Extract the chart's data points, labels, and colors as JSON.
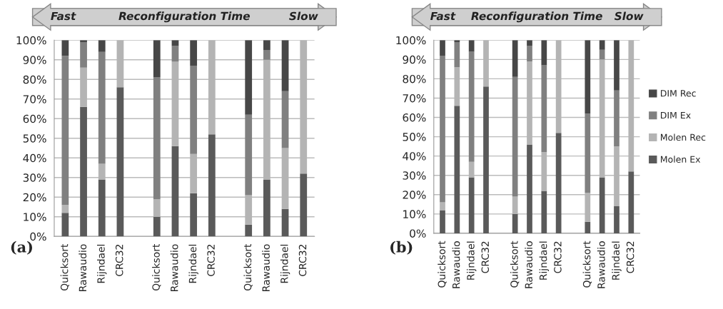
{
  "chart_data": [
    {
      "type": "bar",
      "stacked": true,
      "categories": [
        "Quicksort",
        "Rawaudio",
        "Rijndael",
        "CRC32",
        null,
        "Quicksort",
        "Rawaudio",
        "Rijndael",
        "CRC32",
        null,
        "Quicksort",
        "Rawaudio",
        "Rijndael",
        "CRC32"
      ],
      "series": [
        {
          "color": "#5a5a5a",
          "values": [
            12,
            66,
            29,
            76,
            null,
            10,
            46,
            22,
            52,
            null,
            6,
            29,
            14,
            32
          ]
        },
        {
          "color": "#b4b4b4",
          "values": [
            4,
            20,
            8,
            24,
            null,
            9,
            43,
            20,
            48,
            null,
            15,
            61,
            31,
            68
          ]
        },
        {
          "color": "#808080",
          "values": [
            76,
            13,
            57,
            null,
            null,
            62,
            8,
            45,
            null,
            null,
            41,
            5,
            29,
            null
          ]
        },
        {
          "color": "#474747",
          "values": [
            8,
            1,
            6,
            null,
            null,
            19,
            3,
            13,
            null,
            null,
            38,
            5,
            26,
            null
          ]
        }
      ],
      "ylim": [
        0,
        100
      ],
      "yticks": [
        {
          "value": 0,
          "label": "0%"
        },
        {
          "value": 10,
          "label": "10%"
        },
        {
          "value": 20,
          "label": "20%"
        },
        {
          "value": 30,
          "label": "30%"
        },
        {
          "value": 40,
          "label": "40%"
        },
        {
          "value": 50,
          "label": "50%"
        },
        {
          "value": 60,
          "label": "60%"
        },
        {
          "value": 70,
          "label": "70%"
        },
        {
          "value": 80,
          "label": "80%"
        },
        {
          "value": 90,
          "label": "90%"
        },
        {
          "value": 100,
          "label": "100%"
        }
      ],
      "grid": "y",
      "annotations": [
        "Fast",
        "Reconfiguration Time",
        "Slow",
        "(a)"
      ]
    },
    {
      "type": "bar",
      "stacked": true,
      "categories": [
        "Quicksort",
        "Rawaudio",
        "Rijndael",
        "CRC32",
        null,
        "Quicksort",
        "Rawaudio",
        "Rijndael",
        "CRC32",
        null,
        "Quicksort",
        "Rawaudio",
        "Rijndael",
        "CRC32"
      ],
      "series": [
        {
          "name": "Molen Ex",
          "color": "#5a5a5a",
          "values": [
            12,
            66,
            29,
            76,
            null,
            10,
            46,
            22,
            52,
            null,
            6,
            29,
            14,
            32
          ]
        },
        {
          "name": "Molen Rec",
          "color": "#b4b4b4",
          "values": [
            4,
            20,
            8,
            24,
            null,
            9,
            43,
            20,
            48,
            null,
            15,
            61,
            31,
            68
          ]
        },
        {
          "name": "DIM Ex",
          "color": "#808080",
          "values": [
            76,
            13,
            57,
            null,
            null,
            62,
            8,
            45,
            null,
            null,
            41,
            5,
            29,
            null
          ]
        },
        {
          "name": "DIM Rec",
          "color": "#474747",
          "values": [
            8,
            1,
            6,
            null,
            null,
            19,
            3,
            13,
            null,
            null,
            38,
            5,
            26,
            null
          ]
        }
      ],
      "ylim": [
        0,
        100
      ],
      "yticks": [
        {
          "value": 0,
          "label": "0%"
        },
        {
          "value": 10,
          "label": "10%"
        },
        {
          "value": 20,
          "label": "20%"
        },
        {
          "value": 30,
          "label": "30%"
        },
        {
          "value": 40,
          "label": "40%"
        },
        {
          "value": 50,
          "label": "50%"
        },
        {
          "value": 60,
          "label": "60%"
        },
        {
          "value": 70,
          "label": "70%"
        },
        {
          "value": 80,
          "label": "80%"
        },
        {
          "value": 90,
          "label": "90%"
        },
        {
          "value": 100,
          "label": "100%"
        }
      ],
      "grid": "y",
      "legend": "right",
      "annotations": [
        "Fast",
        "Reconfiguration Time",
        "Slow",
        "(b)"
      ]
    }
  ]
}
